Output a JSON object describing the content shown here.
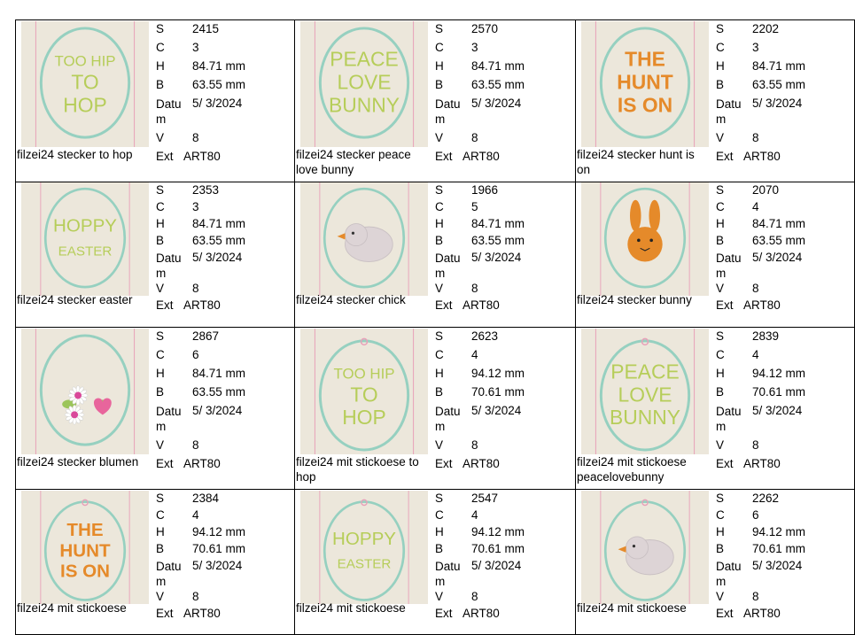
{
  "labels": {
    "s": "S",
    "c": "C",
    "h": "H",
    "b": "B",
    "datum": "Datu m",
    "v": "V",
    "ext": "Ext"
  },
  "colors": {
    "green": "#b6cd59",
    "orange": "#e58a2a",
    "teal": "#96d0c0",
    "pink": "#e8a0b8",
    "felt": "#ece7db"
  },
  "items": [
    {
      "name": "filzei24 stecker to hop",
      "s": "2415",
      "c": "3",
      "h": "84.71 mm",
      "b": "63.55 mm",
      "datum": "5/ 3/2024",
      "v": "8",
      "ext": "ART80",
      "art": "text",
      "art_lines": [
        "TOO HIP",
        "TO",
        "HOP"
      ],
      "art_color": "green",
      "hole": false
    },
    {
      "name": "filzei24 stecker peace love bunny",
      "s": "2570",
      "c": "3",
      "h": "84.71 mm",
      "b": "63.55 mm",
      "datum": "5/ 3/2024",
      "v": "8",
      "ext": "ART80",
      "art": "text",
      "art_lines": [
        "PEACE",
        "LOVE",
        "BUNNY"
      ],
      "art_color": "green",
      "hole": false
    },
    {
      "name": "filzei24 stecker hunt is on",
      "s": "2202",
      "c": "3",
      "h": "84.71 mm",
      "b": "63.55 mm",
      "datum": "5/ 3/2024",
      "v": "8",
      "ext": "ART80",
      "art": "text",
      "art_lines": [
        "THE",
        "HUNT",
        "IS ON"
      ],
      "art_color": "orange",
      "hole": false
    },
    {
      "name": "filzei24 stecker easter",
      "s": "2353",
      "c": "3",
      "h": "84.71 mm",
      "b": "63.55 mm",
      "datum": "5/ 3/2024",
      "v": "8",
      "ext": "ART80",
      "art": "text",
      "art_lines": [
        "HOPPY",
        "EASTER"
      ],
      "art_color": "green",
      "hole": false
    },
    {
      "name": "filzei24 stecker chick",
      "s": "1966",
      "c": "5",
      "h": "84.71 mm",
      "b": "63.55 mm",
      "datum": "5/ 3/2024",
      "v": "8",
      "ext": "ART80",
      "art": "chick",
      "art_lines": [],
      "art_color": "green",
      "hole": false
    },
    {
      "name": "filzei24 stecker bunny",
      "s": "2070",
      "c": "4",
      "h": "84.71 mm",
      "b": "63.55 mm",
      "datum": "5/ 3/2024",
      "v": "8",
      "ext": "ART80",
      "art": "bunny",
      "art_lines": [],
      "art_color": "orange",
      "hole": false
    },
    {
      "name": "filzei24 stecker blumen",
      "s": "2867",
      "c": "6",
      "h": "84.71 mm",
      "b": "63.55 mm",
      "datum": "5/ 3/2024",
      "v": "8",
      "ext": "ART80",
      "art": "flowers",
      "art_lines": [],
      "art_color": "green",
      "hole": false
    },
    {
      "name": "filzei24 mit stickoese to hop",
      "s": "2623",
      "c": "4",
      "h": "94.12 mm",
      "b": "70.61 mm",
      "datum": "5/ 3/2024",
      "v": "8",
      "ext": "ART80",
      "art": "text",
      "art_lines": [
        "TOO HIP",
        "TO",
        "HOP"
      ],
      "art_color": "green",
      "hole": true
    },
    {
      "name": "filzei24 mit stickoese peacelovebunny",
      "s": "2839",
      "c": "4",
      "h": "94.12 mm",
      "b": "70.61 mm",
      "datum": "5/ 3/2024",
      "v": "8",
      "ext": "ART80",
      "art": "text",
      "art_lines": [
        "PEACE",
        "LOVE",
        "BUNNY"
      ],
      "art_color": "green",
      "hole": true
    },
    {
      "name": "filzei24 mit stickoese",
      "s": "2384",
      "c": "4",
      "h": "94.12 mm",
      "b": "70.61 mm",
      "datum": "5/ 3/2024",
      "v": "8",
      "ext": "ART80",
      "art": "text",
      "art_lines": [
        "THE",
        "HUNT",
        "IS ON"
      ],
      "art_color": "orange",
      "hole": true
    },
    {
      "name": "filzei24 mit stickoese",
      "s": "2547",
      "c": "4",
      "h": "94.12 mm",
      "b": "70.61 mm",
      "datum": "5/ 3/2024",
      "v": "8",
      "ext": "ART80",
      "art": "text",
      "art_lines": [
        "HOPPY",
        "EASTER"
      ],
      "art_color": "green",
      "hole": true
    },
    {
      "name": "filzei24 mit stickoese",
      "s": "2262",
      "c": "6",
      "h": "94.12 mm",
      "b": "70.61 mm",
      "datum": "5/ 3/2024",
      "v": "8",
      "ext": "ART80",
      "art": "chick",
      "art_lines": [],
      "art_color": "green",
      "hole": true
    }
  ]
}
